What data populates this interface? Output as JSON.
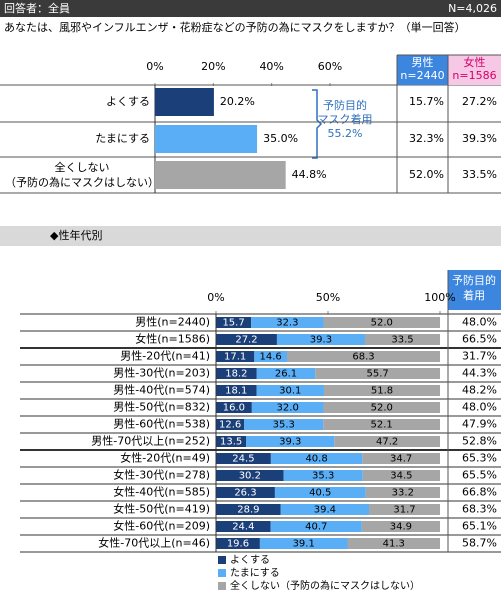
{
  "header": {
    "respondents": "回答者：全員",
    "n": "N=4,026"
  },
  "question": "あなたは、風邪やインフルエンザ・花粉症などの予防の為にマスクをしますか？（単一回答）",
  "annotation": "予防目的\nマスク着用\n55.2%",
  "section_title": "◆性年代別",
  "table": {
    "columns": [
      "男性\nn=2440",
      "女性\nn=1586"
    ],
    "rows": [
      [
        "15.7%",
        "27.2%"
      ],
      [
        "32.3%",
        "39.3%"
      ],
      [
        "52.0%",
        "33.5%"
      ]
    ]
  },
  "chart_data": [
    {
      "type": "bar",
      "orientation": "horizontal",
      "categories": [
        "よくする",
        "たまにする",
        "全くしない\n（予防の為にマスクはしない）"
      ],
      "values": [
        20.2,
        35.0,
        44.8
      ],
      "value_labels": [
        "20.2%",
        "35.0%",
        "44.8%"
      ],
      "colors": [
        "#1b3f78",
        "#5aaef5",
        "#a6a6a6"
      ],
      "xlim": [
        0,
        60
      ],
      "xticks": [
        {
          "value": 0,
          "label": "0%"
        },
        {
          "value": 20,
          "label": "20%"
        },
        {
          "value": 40,
          "label": "40%"
        },
        {
          "value": 60,
          "label": "60%"
        }
      ],
      "grid": false
    },
    {
      "type": "stacked_bar",
      "orientation": "horizontal",
      "categories": [
        "男性(n=2440)",
        "女性(n=1586)",
        "男性-20代(n=41)",
        "男性-30代(n=203)",
        "男性-40代(n=574)",
        "男性-50代(n=832)",
        "男性-60代(n=538)",
        "男性-70代以上(n=252)",
        "女性-20代(n=49)",
        "女性-30代(n=278)",
        "女性-40代(n=585)",
        "女性-50代(n=419)",
        "女性-60代(n=209)",
        "女性-70代以上(n=46)"
      ],
      "series": [
        {
          "name": "よくする",
          "color": "#1b3f78",
          "values": [
            15.7,
            27.2,
            17.1,
            18.2,
            18.1,
            16.0,
            12.6,
            13.5,
            24.5,
            30.2,
            26.3,
            28.9,
            24.4,
            19.6
          ],
          "value_labels": [
            "15.7",
            "27.2",
            "17.1",
            "18.2",
            "18.1",
            "16.0",
            "12.6",
            "13.5",
            "24.5",
            "30.2",
            "26.3",
            "28.9",
            "24.4",
            "19.6"
          ]
        },
        {
          "name": "たまにする",
          "color": "#5aaef5",
          "values": [
            32.3,
            39.3,
            14.6,
            26.1,
            30.1,
            32.0,
            35.3,
            39.3,
            40.8,
            35.3,
            40.5,
            39.4,
            40.7,
            39.1
          ],
          "value_labels": [
            "32.3",
            "39.3",
            "14.6",
            "26.1",
            "30.1",
            "32.0",
            "35.3",
            "39.3",
            "40.8",
            "35.3",
            "40.5",
            "39.4",
            "40.7",
            "39.1"
          ]
        },
        {
          "name": "全くしない（予防の為にマスクはしない）",
          "color": "#a6a6a6",
          "values": [
            52.0,
            33.5,
            68.3,
            55.7,
            51.8,
            52.0,
            52.1,
            47.2,
            34.7,
            34.5,
            33.2,
            31.7,
            34.9,
            41.3
          ],
          "value_labels": [
            "52.0",
            "33.5",
            "68.3",
            "55.7",
            "51.8",
            "52.0",
            "52.1",
            "47.2",
            "34.7",
            "34.5",
            "33.2",
            "31.7",
            "34.9",
            "41.3"
          ]
        }
      ],
      "xlim": [
        0,
        100
      ],
      "xticks": [
        {
          "value": 0,
          "label": "0%"
        },
        {
          "value": 50,
          "label": "50%"
        },
        {
          "value": 100,
          "label": "100%"
        }
      ],
      "grid": false,
      "extra_column": {
        "title": "予防目的\n着用",
        "values": [
          48.0,
          66.5,
          31.7,
          44.3,
          48.2,
          48.0,
          47.9,
          52.8,
          65.3,
          65.5,
          66.8,
          68.3,
          65.1,
          58.7
        ],
        "value_labels": [
          "48.0%",
          "66.5%",
          "31.7%",
          "44.3%",
          "48.2%",
          "48.0%",
          "47.9%",
          "52.8%",
          "65.3%",
          "65.5%",
          "66.8%",
          "68.3%",
          "65.1%",
          "58.7%"
        ]
      }
    }
  ]
}
